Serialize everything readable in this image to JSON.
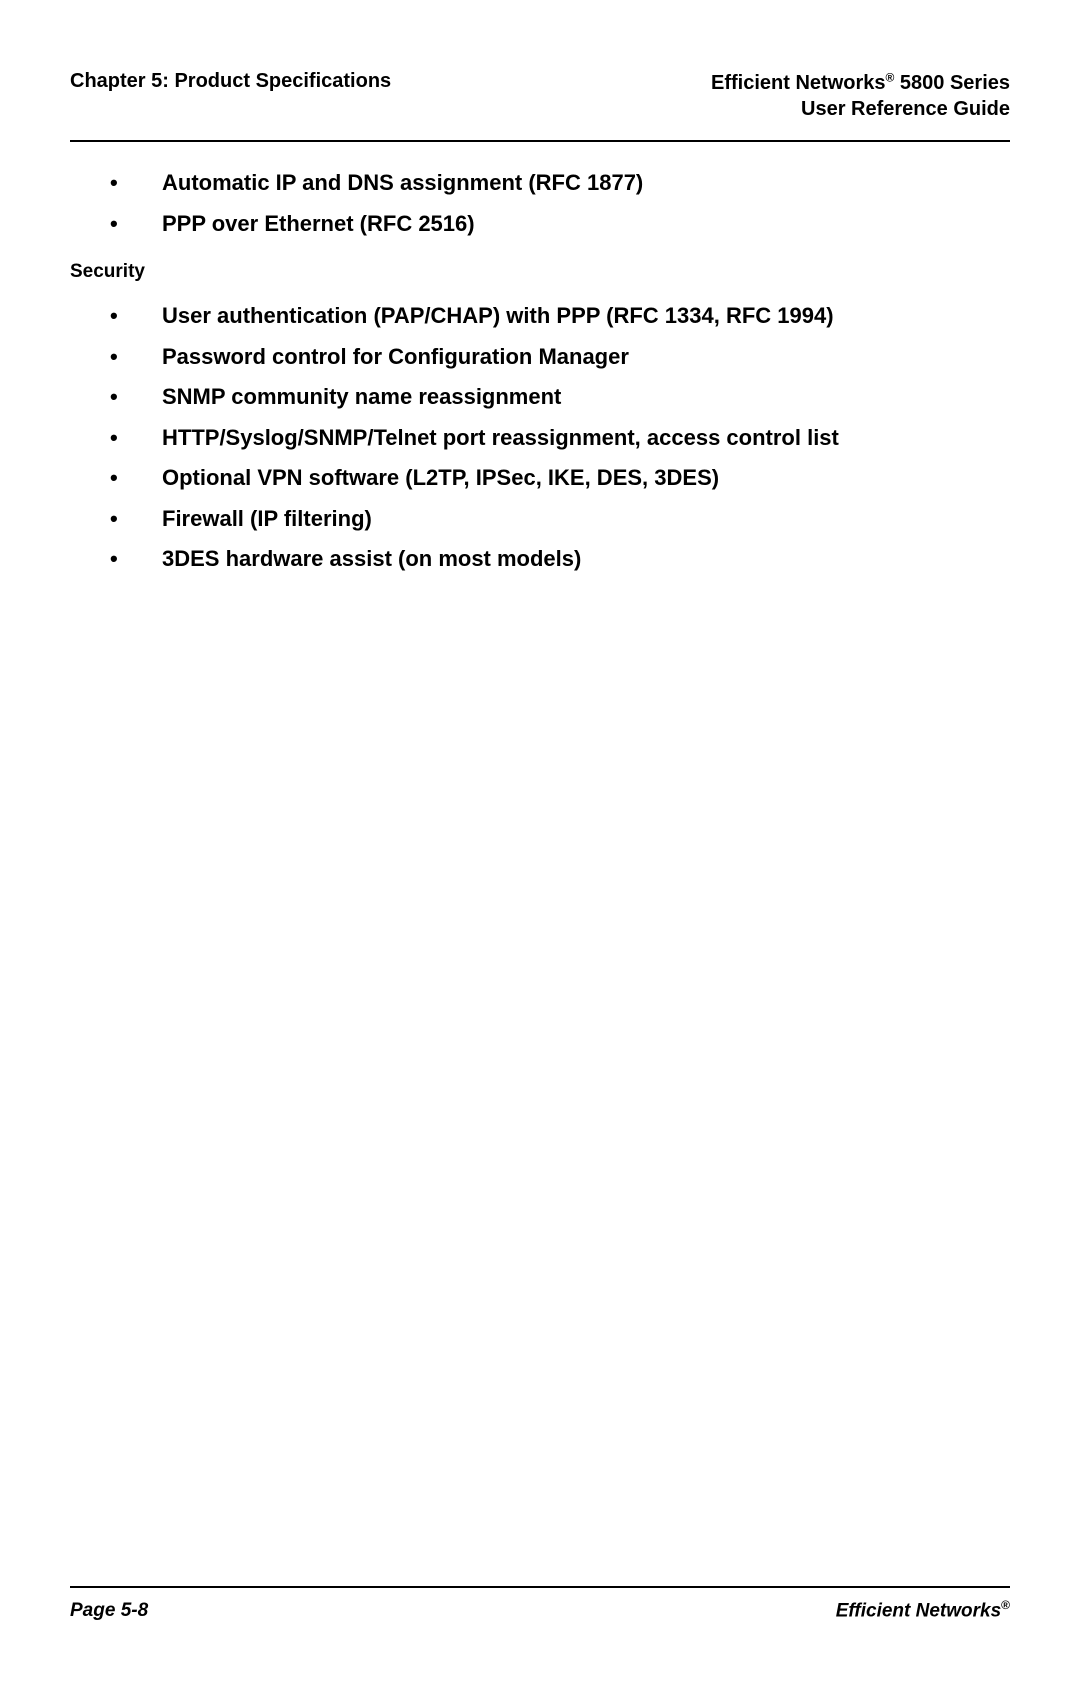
{
  "header": {
    "chapter": "Chapter 5: Product Specifications",
    "brand_line1_pre": "Efficient Networks",
    "brand_line1_post": " 5800 Series",
    "brand_reg": "®",
    "brand_line2": "User Reference Guide"
  },
  "top_bullets": [
    "Automatic IP and DNS assignment (RFC 1877)",
    "PPP over Ethernet (RFC 2516)"
  ],
  "section_heading": "Security",
  "security_bullets": [
    "User authentication (PAP/CHAP) with PPP (RFC 1334, RFC 1994)",
    "Password control for Configuration Manager",
    "SNMP community name reassignment",
    "HTTP/Syslog/SNMP/Telnet port reassignment, access control list",
    "Optional VPN software (L2TP, IPSec, IKE, DES, 3DES)",
    "Firewall (IP filtering)",
    "3DES hardware assist (on most models)"
  ],
  "footer": {
    "page": "Page 5-8",
    "brand": "Efficient Networks",
    "reg": "®"
  }
}
